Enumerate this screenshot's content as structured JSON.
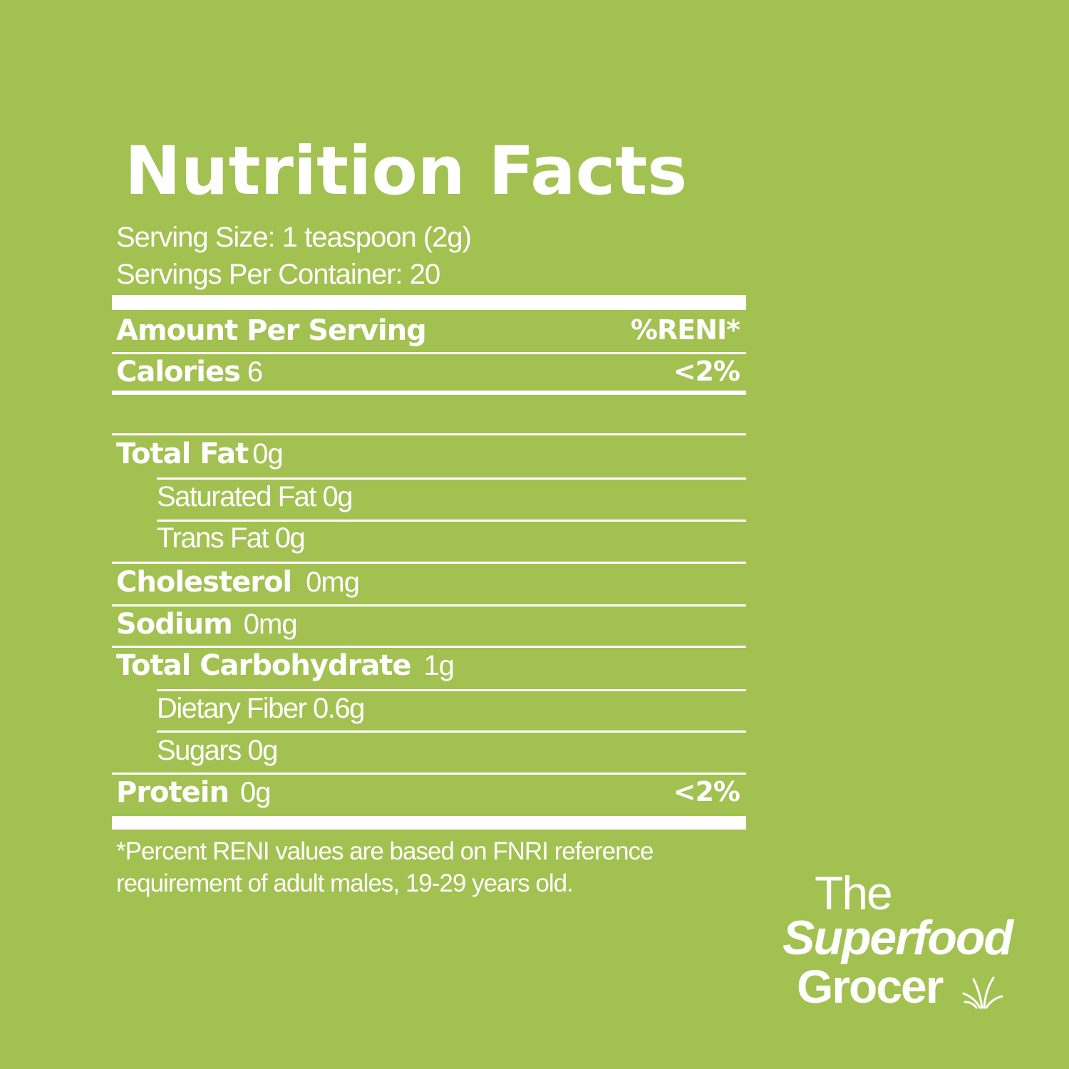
{
  "title": "Nutrition Facts",
  "serving_size": "Serving Size: 1 teaspoon (2g)",
  "servings_per_container": "Servings Per Container: 20",
  "header": {
    "amount_label": "Amount Per Serving",
    "reni_label": "%RENI*"
  },
  "calories": {
    "label": "Calories",
    "value": "6",
    "pct": "<2%"
  },
  "total_fat": {
    "label": "Total Fat",
    "value": "0g"
  },
  "saturated_fat": "Saturated Fat 0g",
  "trans_fat": "Trans Fat 0g",
  "cholesterol": {
    "label": "Cholesterol",
    "value": "0mg"
  },
  "sodium": {
    "label": "Sodium",
    "value": "0mg"
  },
  "total_carbohydrate": {
    "label": "Total Carbohydrate",
    "value": "1g"
  },
  "dietary_fiber": "Dietary Fiber 0.6g",
  "sugars": "Sugars 0g",
  "protein": {
    "label": "Protein",
    "value": "0g",
    "pct": "<2%"
  },
  "footnote": {
    "line1": "*Percent RENI values are based on FNRI reference",
    "line2": "requirement of adult males, 19-29 years old."
  },
  "logo": {
    "line1": "The",
    "line2": "Superfood",
    "line3": "Grocer",
    "icon": "grass-sprout-icon"
  },
  "colors": {
    "background": "#a2c151",
    "text": "#ffffff"
  }
}
